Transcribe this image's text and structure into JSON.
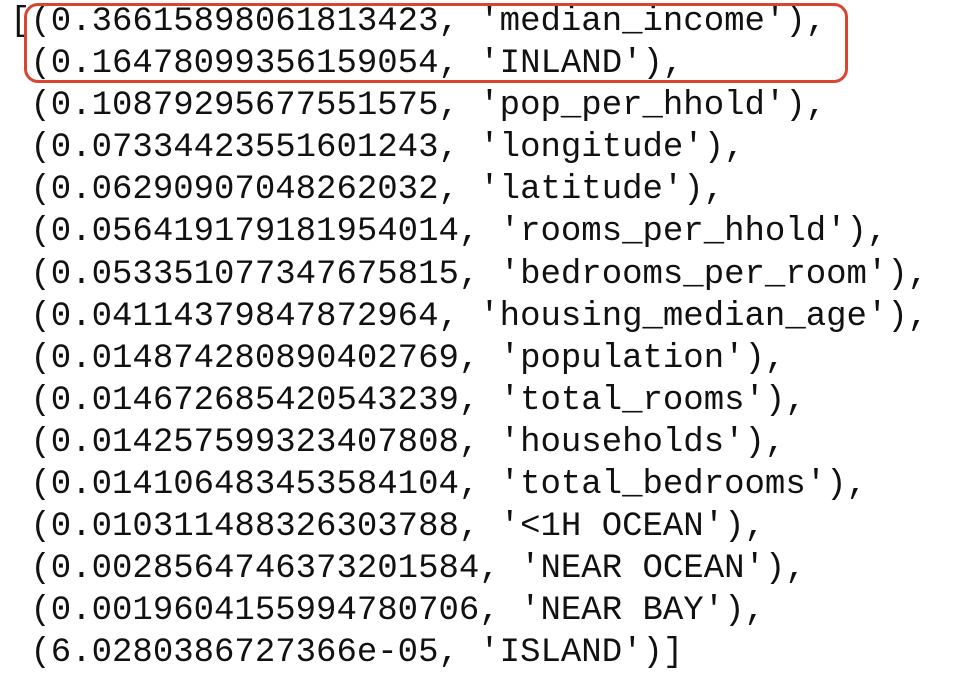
{
  "lines": [
    "[(0.36615898061813423, 'median_income'),",
    " (0.16478099356159054, 'INLAND'),",
    " (0.10879295677551575, 'pop_per_hhold'),",
    " (0.07334423551601243, 'longitude'),",
    " (0.06290907048262032, 'latitude'),",
    " (0.056419179181954014, 'rooms_per_hhold'),",
    " (0.053351077347675815, 'bedrooms_per_room'),",
    " (0.04114379847872964, 'housing_median_age'),",
    " (0.014874280890402769, 'population'),",
    " (0.014672685420543239, 'total_rooms'),",
    " (0.014257599323407808, 'households'),",
    " (0.014106483453584104, 'total_bedrooms'),",
    " (0.010311488326303788, '<1H OCEAN'),",
    " (0.0028564746373201584, 'NEAR OCEAN'),",
    " (0.0019604155994780706, 'NEAR BAY'),",
    " (6.0280386727366e-05, 'ISLAND')]"
  ]
}
